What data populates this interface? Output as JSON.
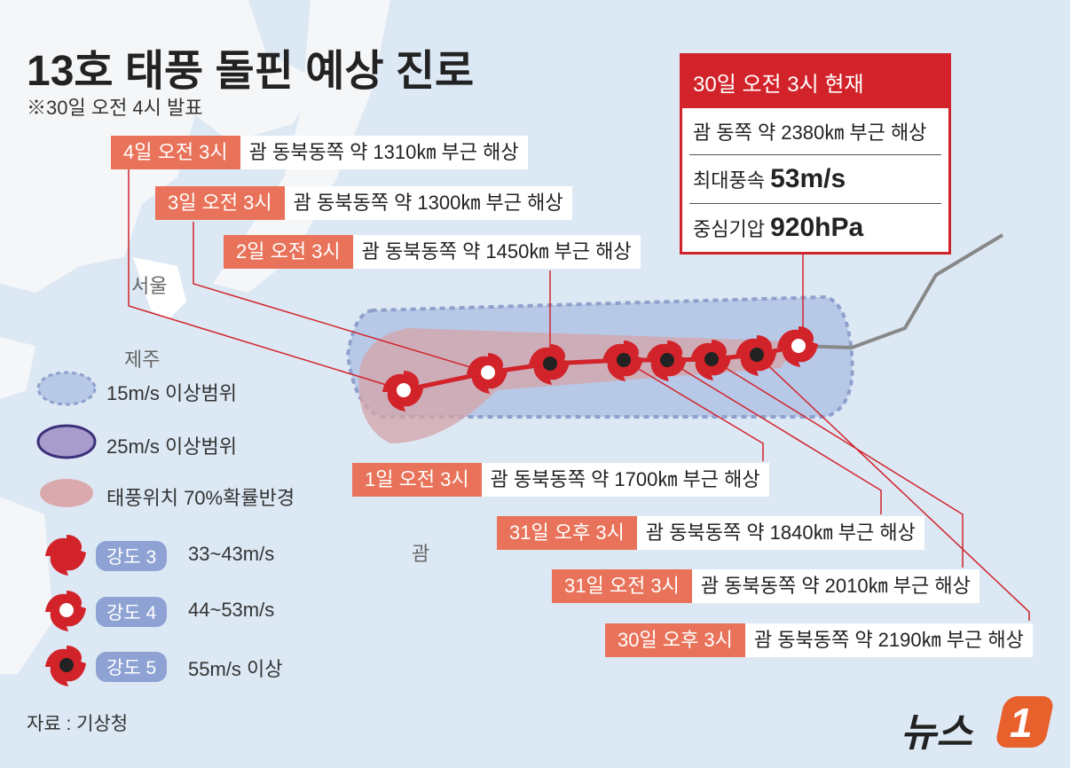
{
  "title": "13호 태풍 돌핀 예상 진로",
  "subtitle": "※30일 오전 4시 발표",
  "current": {
    "header": "30일 오전 3시 현재",
    "location": "괌 동쪽 약 2380㎞ 부근 해상",
    "wind_label": "최대풍속",
    "wind_value": "53m/s",
    "pressure_label": "중심기압",
    "pressure_value": "920hPa"
  },
  "forecasts": [
    {
      "time": "4일 오전 3시",
      "desc": "괌 동북동쪽 약 1310㎞ 부근 해상"
    },
    {
      "time": "3일 오전 3시",
      "desc": "괌 동북동쪽 약 1300㎞ 부근 해상"
    },
    {
      "time": "2일 오전 3시",
      "desc": "괌 동북동쪽 약 1450㎞ 부근 해상"
    },
    {
      "time": "1일 오전 3시",
      "desc": "괌 동북동쪽 약 1700㎞ 부근 해상"
    },
    {
      "time": "31일 오후 3시",
      "desc": "괌 동북동쪽 약 1840㎞ 부근 해상"
    },
    {
      "time": "31일 오전 3시",
      "desc": "괌 동북동쪽 약 2010㎞ 부근 해상"
    },
    {
      "time": "30일 오후 3시",
      "desc": "괌 동북동쪽 약 2190㎞ 부근 해상"
    }
  ],
  "places": [
    "서울",
    "제주",
    "괌"
  ],
  "legend": {
    "areas": [
      "15m/s 이상범위",
      "25m/s 이상범위",
      "태풍위치 70%확률반경"
    ],
    "intensity": [
      {
        "label": "강도 3",
        "range": "33~43m/s"
      },
      {
        "label": "강도 4",
        "range": "44~53m/s"
      },
      {
        "label": "강도 5",
        "range": "55m/s 이상"
      }
    ]
  },
  "source": "자료 : 기상청",
  "logo": {
    "text": "뉴스",
    "mark": "1"
  }
}
